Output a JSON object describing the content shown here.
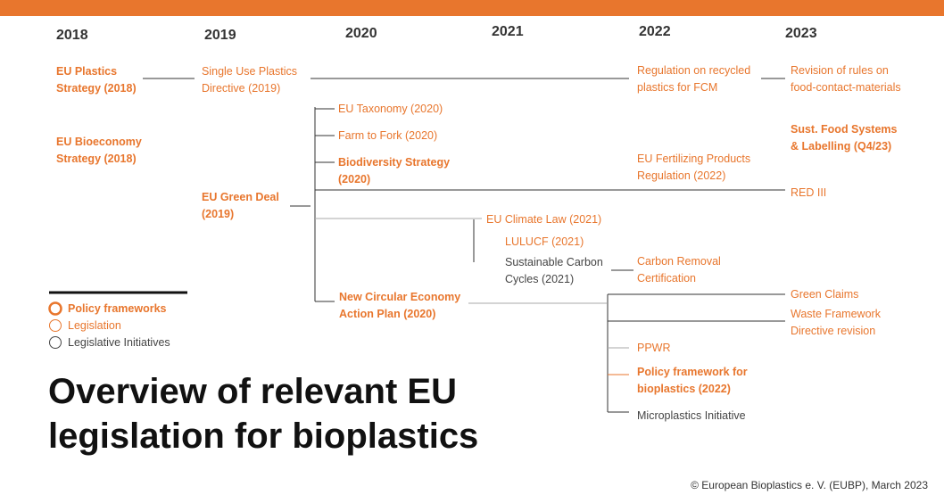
{
  "years": [
    "2018",
    "2019",
    "2020",
    "2021",
    "2022",
    "2023"
  ],
  "nodes": [
    {
      "kind": "framework",
      "lines": [
        "EU Plastics",
        "Strategy (2018)"
      ]
    },
    {
      "kind": "legislation",
      "lines": [
        "Single Use Plastics",
        "Directive (2019)"
      ]
    },
    {
      "kind": "legislation",
      "lines": [
        "Regulation on recycled",
        "plastics for FCM"
      ]
    },
    {
      "kind": "legislation",
      "lines": [
        "Revision of rules on",
        "food-contact-materials"
      ]
    },
    {
      "kind": "legislation",
      "lines": [
        "EU Taxonomy (2020)"
      ]
    },
    {
      "kind": "legislation",
      "lines": [
        "Farm to Fork (2020)"
      ]
    },
    {
      "kind": "framework",
      "lines": [
        "Biodiversity Strategy",
        "(2020)"
      ]
    },
    {
      "kind": "framework",
      "lines": [
        "EU Bioeconomy",
        "Strategy (2018)"
      ]
    },
    {
      "kind": "framework",
      "lines": [
        "Sust. Food Systems",
        "& Labelling (Q4/23)"
      ]
    },
    {
      "kind": "legislation",
      "lines": [
        "EU Fertilizing Products",
        "Regulation (2022)"
      ]
    },
    {
      "kind": "framework",
      "lines": [
        "EU Green Deal",
        "(2019)"
      ]
    },
    {
      "kind": "legislation",
      "lines": [
        "RED III"
      ]
    },
    {
      "kind": "legislation",
      "lines": [
        "EU Climate Law (2021)"
      ]
    },
    {
      "kind": "legislation",
      "lines": [
        "LULUCF (2021)"
      ]
    },
    {
      "kind": "initiative",
      "lines": [
        "Sustainable Carbon",
        "Cycles (2021)"
      ]
    },
    {
      "kind": "legislation",
      "lines": [
        "Carbon Removal",
        "Certification"
      ]
    },
    {
      "kind": "framework",
      "lines": [
        "New Circular Economy",
        "Action Plan (2020)"
      ]
    },
    {
      "kind": "legislation",
      "lines": [
        "Green Claims"
      ]
    },
    {
      "kind": "legislation",
      "lines": [
        "Waste Framework",
        "Directive revision"
      ]
    },
    {
      "kind": "legislation",
      "lines": [
        "PPWR"
      ]
    },
    {
      "kind": "framework",
      "lines": [
        "Policy framework for",
        "bioplastics (2022)"
      ]
    },
    {
      "kind": "initiative",
      "lines": [
        "Microplastics Initiative"
      ]
    }
  ],
  "legend": [
    {
      "kind": "framework",
      "label": "Policy frameworks"
    },
    {
      "kind": "legislation",
      "label": "Legislation"
    },
    {
      "kind": "initiative",
      "label": "Legislative Initiatives"
    }
  ],
  "title": [
    "Overview of relevant EU",
    "legislation for bioplastics"
  ],
  "footer": "© European Bioplastics e. V. (EUBP), March 2023"
}
